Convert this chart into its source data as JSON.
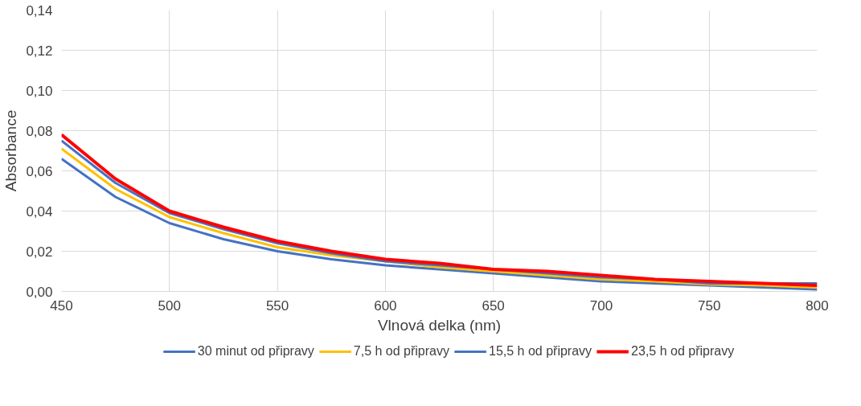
{
  "chart_data": {
    "type": "line",
    "xlabel": "Vlnová delka (nm)",
    "ylabel": "Absorbance",
    "x": [
      450,
      475,
      500,
      525,
      550,
      575,
      600,
      625,
      650,
      675,
      700,
      725,
      750,
      775,
      800
    ],
    "series": [
      {
        "name": "30 minut od připravy",
        "color": "#4472c4",
        "values": [
          0.066,
          0.047,
          0.034,
          0.026,
          0.02,
          0.016,
          0.013,
          0.011,
          0.009,
          0.007,
          0.005,
          0.004,
          0.003,
          0.002,
          0.001
        ]
      },
      {
        "name": "7,5 h od připravy",
        "color": "#ffc000",
        "values": [
          0.071,
          0.051,
          0.037,
          0.029,
          0.022,
          0.018,
          0.015,
          0.012,
          0.01,
          0.008,
          0.006,
          0.005,
          0.0035,
          0.003,
          0.002
        ]
      },
      {
        "name": "15,5 h od připravy",
        "color": "#4472c4",
        "values": [
          0.075,
          0.054,
          0.039,
          0.031,
          0.024,
          0.019,
          0.015,
          0.013,
          0.011,
          0.009,
          0.007,
          0.006,
          0.004,
          0.004,
          0.004
        ]
      },
      {
        "name": "23,5 h od připravy",
        "color": "#ff0000",
        "values": [
          0.078,
          0.056,
          0.04,
          0.032,
          0.025,
          0.02,
          0.016,
          0.014,
          0.011,
          0.01,
          0.008,
          0.006,
          0.005,
          0.004,
          0.003
        ]
      }
    ],
    "xlim": [
      450,
      800
    ],
    "xticks": [
      450,
      500,
      550,
      600,
      650,
      700,
      750,
      800
    ],
    "ylim": [
      0,
      0.14
    ],
    "yticks": [
      {
        "value": 0,
        "label": "0,00"
      },
      {
        "value": 0.02,
        "label": "0,02"
      },
      {
        "value": 0.04,
        "label": "0,04"
      },
      {
        "value": 0.06,
        "label": "0,06"
      },
      {
        "value": 0.08,
        "label": "0,08"
      },
      {
        "value": 0.1,
        "label": "0,10"
      },
      {
        "value": 0.12,
        "label": "0,12"
      },
      {
        "value": 0.14,
        "label": "0,14"
      }
    ],
    "grid": true,
    "legend": "bottom"
  }
}
